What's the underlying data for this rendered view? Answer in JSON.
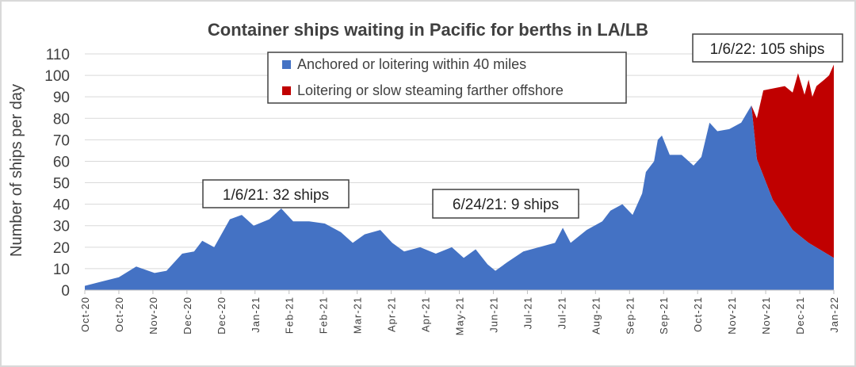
{
  "chart_data": {
    "type": "area",
    "title": "Container ships waiting in Pacific for berths in LA/LB",
    "xlabel": "",
    "ylabel": "Number of ships per day",
    "ylim": [
      0,
      110
    ],
    "yticks": [
      0,
      10,
      20,
      30,
      40,
      50,
      60,
      70,
      80,
      90,
      100,
      110
    ],
    "grid": true,
    "legend_placement": "top-center",
    "x_tick_labels": [
      "Oct-20",
      "Oct-20",
      "Nov-20",
      "Dec-20",
      "Dec-20",
      "Jan-21",
      "Feb-21",
      "Feb-21",
      "Mar-21",
      "Apr-21",
      "Apr-21",
      "May-21",
      "Jun-21",
      "Jul-21",
      "Jul-21",
      "Aug-21",
      "Sep-21",
      "Sep-21",
      "Oct-21",
      "Nov-21",
      "Nov-21",
      "Dec-21",
      "Jan-22"
    ],
    "x_units": "tick index (0 = first Oct-20 tick, 22 = Jan-22)",
    "series": [
      {
        "name": "Anchored or loitering within 40 miles",
        "color": "#4472c4",
        "x": [
          0,
          1.0,
          1.51,
          2.05,
          2.4,
          2.86,
          3.21,
          3.45,
          3.8,
          4.26,
          4.61,
          4.96,
          5.42,
          5.77,
          6.12,
          6.59,
          7.05,
          7.52,
          7.87,
          8.22,
          8.68,
          9.03,
          9.38,
          9.85,
          10.31,
          10.78,
          11.13,
          11.48,
          11.83,
          12.06,
          12.41,
          12.88,
          13.34,
          13.81,
          14.04,
          14.27,
          14.74,
          15.2,
          15.44,
          15.79,
          16.09,
          16.37,
          16.48,
          16.72,
          16.83,
          16.95,
          17.18,
          17.53,
          17.88,
          18.11,
          18.35,
          18.58,
          18.93,
          19.28,
          19.58,
          19.74,
          20.21,
          20.79,
          21.26,
          22
        ],
        "values": [
          2,
          6,
          11,
          8,
          9,
          17,
          18,
          23,
          20,
          33,
          35,
          30,
          33,
          38,
          32,
          32,
          31,
          27,
          22,
          26,
          28,
          22,
          18,
          20,
          17,
          20,
          15,
          19,
          12,
          9,
          13,
          18,
          20,
          22,
          29,
          22,
          28,
          32,
          37,
          40,
          35,
          45,
          55,
          60,
          70,
          72,
          63,
          63,
          58,
          62,
          78,
          74,
          75,
          78,
          86,
          61,
          42,
          28,
          22,
          15
        ]
      },
      {
        "name": "Loitering or slow steaming farther offshore",
        "color": "#c00000",
        "stacked_total_x": [
          19.58,
          19.74,
          19.93,
          20.56,
          20.79,
          20.95,
          21.14,
          21.26,
          21.37,
          21.49,
          21.72,
          21.86,
          22
        ],
        "stacked_total": [
          86,
          80,
          93,
          95,
          92,
          101,
          91,
          98,
          90,
          95,
          98,
          100,
          105
        ]
      }
    ],
    "annotations": [
      "1/6/21: 32 ships",
      "6/24/21: 9 ships",
      "1/6/22: 105 ships"
    ]
  }
}
